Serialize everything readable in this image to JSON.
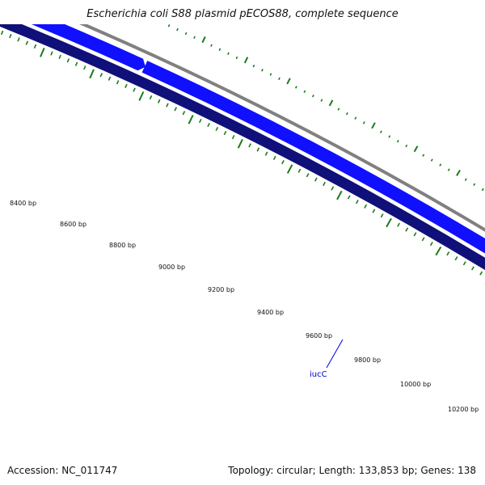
{
  "title": "Escherichia coli S88 plasmid pECOS88, complete sequence",
  "footer": {
    "accession": "Accession: NC_011747",
    "summary": "Topology: circular; Length: 133,853 bp; Genes: 138"
  },
  "map": {
    "position_labels": [
      "8400 bp",
      "8600 bp",
      "8800 bp",
      "9000 bp",
      "9200 bp",
      "9400 bp",
      "9600 bp",
      "9800 bp",
      "10000 bp",
      "10200 bp"
    ],
    "gene_label": "iucC",
    "colors": {
      "backbone": "#808080",
      "forward_gene": "#1010ff",
      "forward_gene_highlight": "#6060ff",
      "reverse_track": "#10107a",
      "ticks": "#1a7a1a",
      "gene_label": "#0000cc"
    }
  }
}
